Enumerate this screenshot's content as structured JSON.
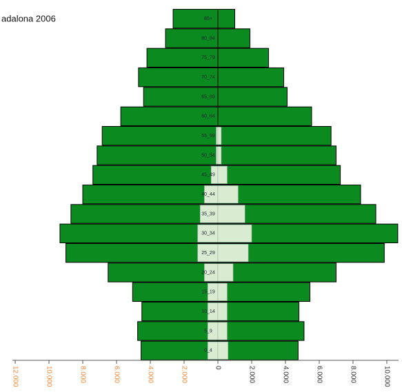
{
  "chart_data": {
    "type": "pyramid",
    "title": "adalona 2006",
    "categories": [
      "0_4",
      "5_9",
      "10_14",
      "15_19",
      "20_24",
      "25_29",
      "30_34",
      "35_39",
      "40_44",
      "45_49",
      "50_54",
      "55_59",
      "60_64",
      "65_69",
      "70_74",
      "75_79",
      "80_84",
      "85+"
    ],
    "series": [
      {
        "color": "#0b8a1f",
        "values": [
          -4550,
          -4750,
          -4500,
          -5050,
          -6500,
          -9000,
          -9350,
          -8700,
          -8000,
          -7400,
          -7150,
          -6850,
          -5750,
          -4400,
          -4700,
          -4200,
          -3100,
          -2650
        ]
      },
      {
        "color": "#0b8a1f",
        "values": [
          4750,
          5100,
          4800,
          5450,
          7000,
          9850,
          10650,
          9350,
          8450,
          7250,
          7000,
          6700,
          5550,
          4100,
          3900,
          3000,
          1900,
          1000
        ]
      },
      {
        "color": "#d9ecd2",
        "values": [
          -600,
          -600,
          -600,
          -600,
          -800,
          -1200,
          -1200,
          -1050,
          -800,
          -400,
          -100,
          -100,
          0,
          0,
          0,
          0,
          0,
          0
        ]
      },
      {
        "color": "#d9ecd2",
        "values": [
          600,
          550,
          550,
          550,
          900,
          1800,
          2000,
          1600,
          1200,
          550,
          200,
          200,
          0,
          0,
          0,
          0,
          0,
          0
        ]
      }
    ],
    "xlim": [
      -12900,
      10900
    ],
    "xticks": [
      {
        "value": -12000,
        "label": "12.000"
      },
      {
        "value": -10000,
        "label": "10.000"
      },
      {
        "value": -8000,
        "label": "8.000"
      },
      {
        "value": -6000,
        "label": "6.000"
      },
      {
        "value": -4000,
        "label": "4.000"
      },
      {
        "value": -2000,
        "label": "2.000"
      },
      0,
      {
        "value": 2000,
        "label": "2.000"
      },
      {
        "value": 4000,
        "label": "4.000"
      },
      {
        "value": 6000,
        "label": "6.000"
      },
      {
        "value": 8000,
        "label": "8.000"
      },
      {
        "value": 10000,
        "label": "10.000"
      }
    ],
    "negative_tick_color": "#f08a3c",
    "positive_tick_color": "#333333"
  }
}
